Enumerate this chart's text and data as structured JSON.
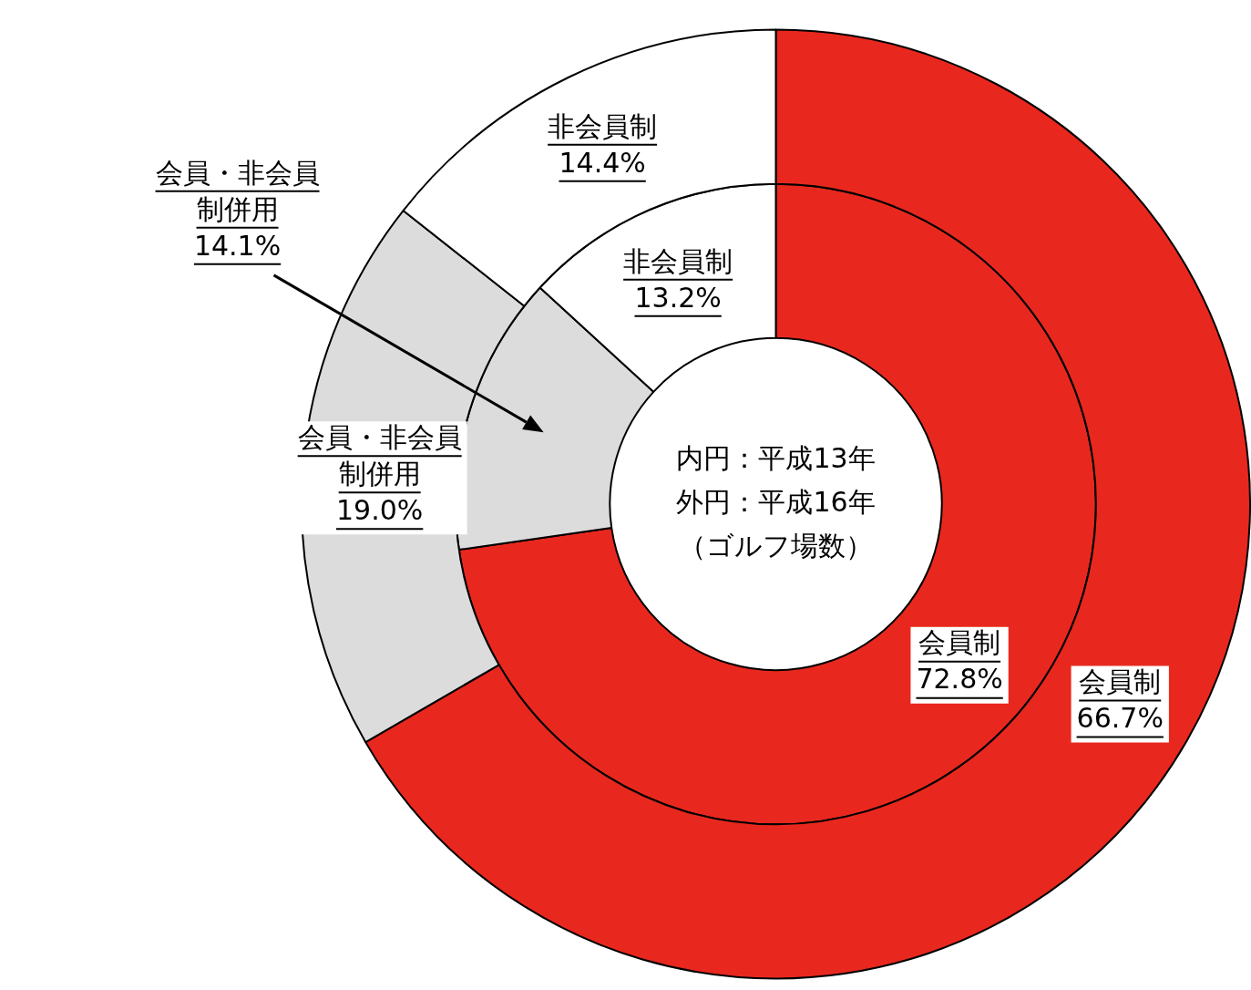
{
  "chart_data": {
    "type": "donut",
    "categories": [
      "会員制",
      "会員・非会員制併用",
      "非会員制"
    ],
    "colors": [
      "#e8281e",
      "#dcdcdc",
      "#ffffff"
    ],
    "series": [
      {
        "values": [
          66.7,
          19.0,
          14.4
        ],
        "value_labels": [
          "66.7%",
          "19.0%",
          "14.4%"
        ]
      },
      {
        "values": [
          72.8,
          14.1,
          13.2
        ],
        "value_labels": [
          "72.8%",
          "14.1%",
          "13.2%"
        ]
      }
    ],
    "annotations": [
      "内円：平成13年",
      "外円：平成16年",
      "（ゴルフ場数）"
    ],
    "legend": false
  }
}
